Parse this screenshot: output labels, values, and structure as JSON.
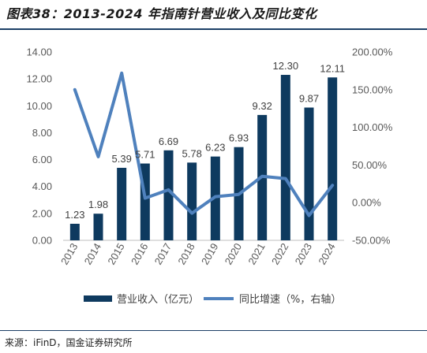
{
  "title": "图表38：2013-2024 年指南针营业收入及同比变化",
  "source": "来源：iFinD，国金证券研究所",
  "colors": {
    "bar": "#0e3a5f",
    "line": "#4f81bd"
  },
  "chart_data": {
    "type": "bar",
    "categories": [
      "2013",
      "2014",
      "2015",
      "2016",
      "2017",
      "2018",
      "2019",
      "2020",
      "2021",
      "2022",
      "2023",
      "2024"
    ],
    "series": [
      {
        "name": "营业收入（亿元）",
        "type": "bar",
        "axis": "left",
        "values": [
          1.23,
          1.98,
          5.39,
          5.71,
          6.69,
          5.78,
          6.23,
          6.93,
          9.32,
          12.3,
          9.87,
          12.11
        ],
        "labels": [
          "1.23",
          "1.98",
          "5.39",
          "5.71",
          "6.69",
          "5.78",
          "6.23",
          "6.93",
          "9.32",
          "12.30",
          "9.87",
          "12.11"
        ]
      },
      {
        "name": "同比增速（%，右轴）",
        "type": "line",
        "axis": "right",
        "values": [
          150,
          61,
          172,
          6,
          17,
          -14,
          8,
          11,
          35,
          32,
          -17,
          23
        ]
      }
    ],
    "left_axis": {
      "min": 0,
      "max": 14,
      "ticks": [
        "0.00",
        "2.00",
        "4.00",
        "6.00",
        "8.00",
        "10.00",
        "12.00",
        "14.00"
      ]
    },
    "right_axis": {
      "min": -50,
      "max": 200,
      "ticks": [
        "-50.00%",
        "0.00%",
        "50.00%",
        "100.00%",
        "150.00%",
        "200.00%"
      ]
    },
    "grid": false,
    "legend_position": "bottom"
  }
}
